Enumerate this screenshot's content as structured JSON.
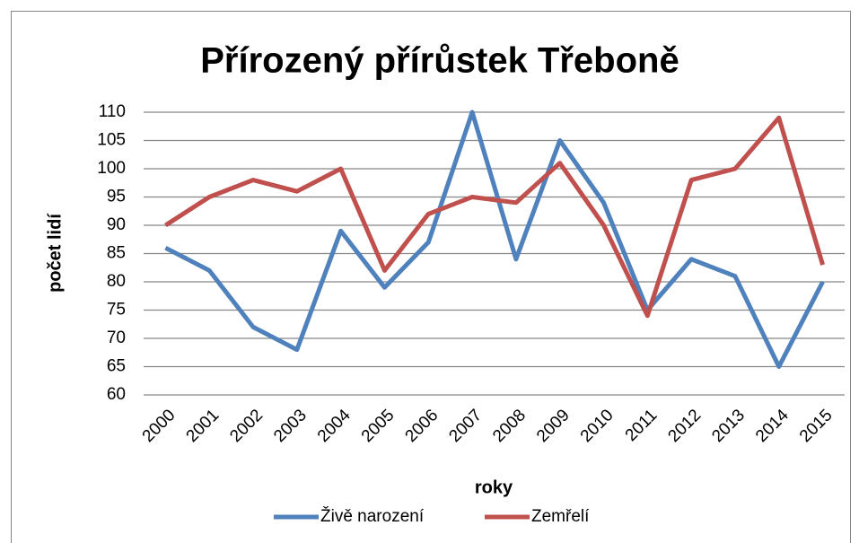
{
  "chart_data": {
    "type": "line",
    "title": "Přírozený přírůstek Třeboně",
    "x_label": "roky",
    "y_label": "počet lidí",
    "categories": [
      "2000",
      "2001",
      "2002",
      "2003",
      "2004",
      "2005",
      "2006",
      "2007",
      "2008",
      "2009",
      "2010",
      "2011",
      "2012",
      "2013",
      "2014",
      "2015"
    ],
    "series": [
      {
        "name": "Živě narození",
        "color": "#4f81bd",
        "values": [
          86,
          82,
          72,
          68,
          89,
          79,
          87,
          110,
          84,
          105,
          94,
          75,
          84,
          81,
          65,
          80
        ]
      },
      {
        "name": "Zemřelí",
        "color": "#c0504d",
        "values": [
          90,
          95,
          98,
          96,
          100,
          82,
          92,
          95,
          94,
          101,
          90,
          74,
          98,
          100,
          109,
          83
        ]
      }
    ],
    "ylim": [
      60,
      110
    ],
    "yticks": [
      60,
      65,
      70,
      75,
      80,
      85,
      90,
      95,
      100,
      105,
      110
    ],
    "grid": true,
    "legend": "bottom"
  }
}
